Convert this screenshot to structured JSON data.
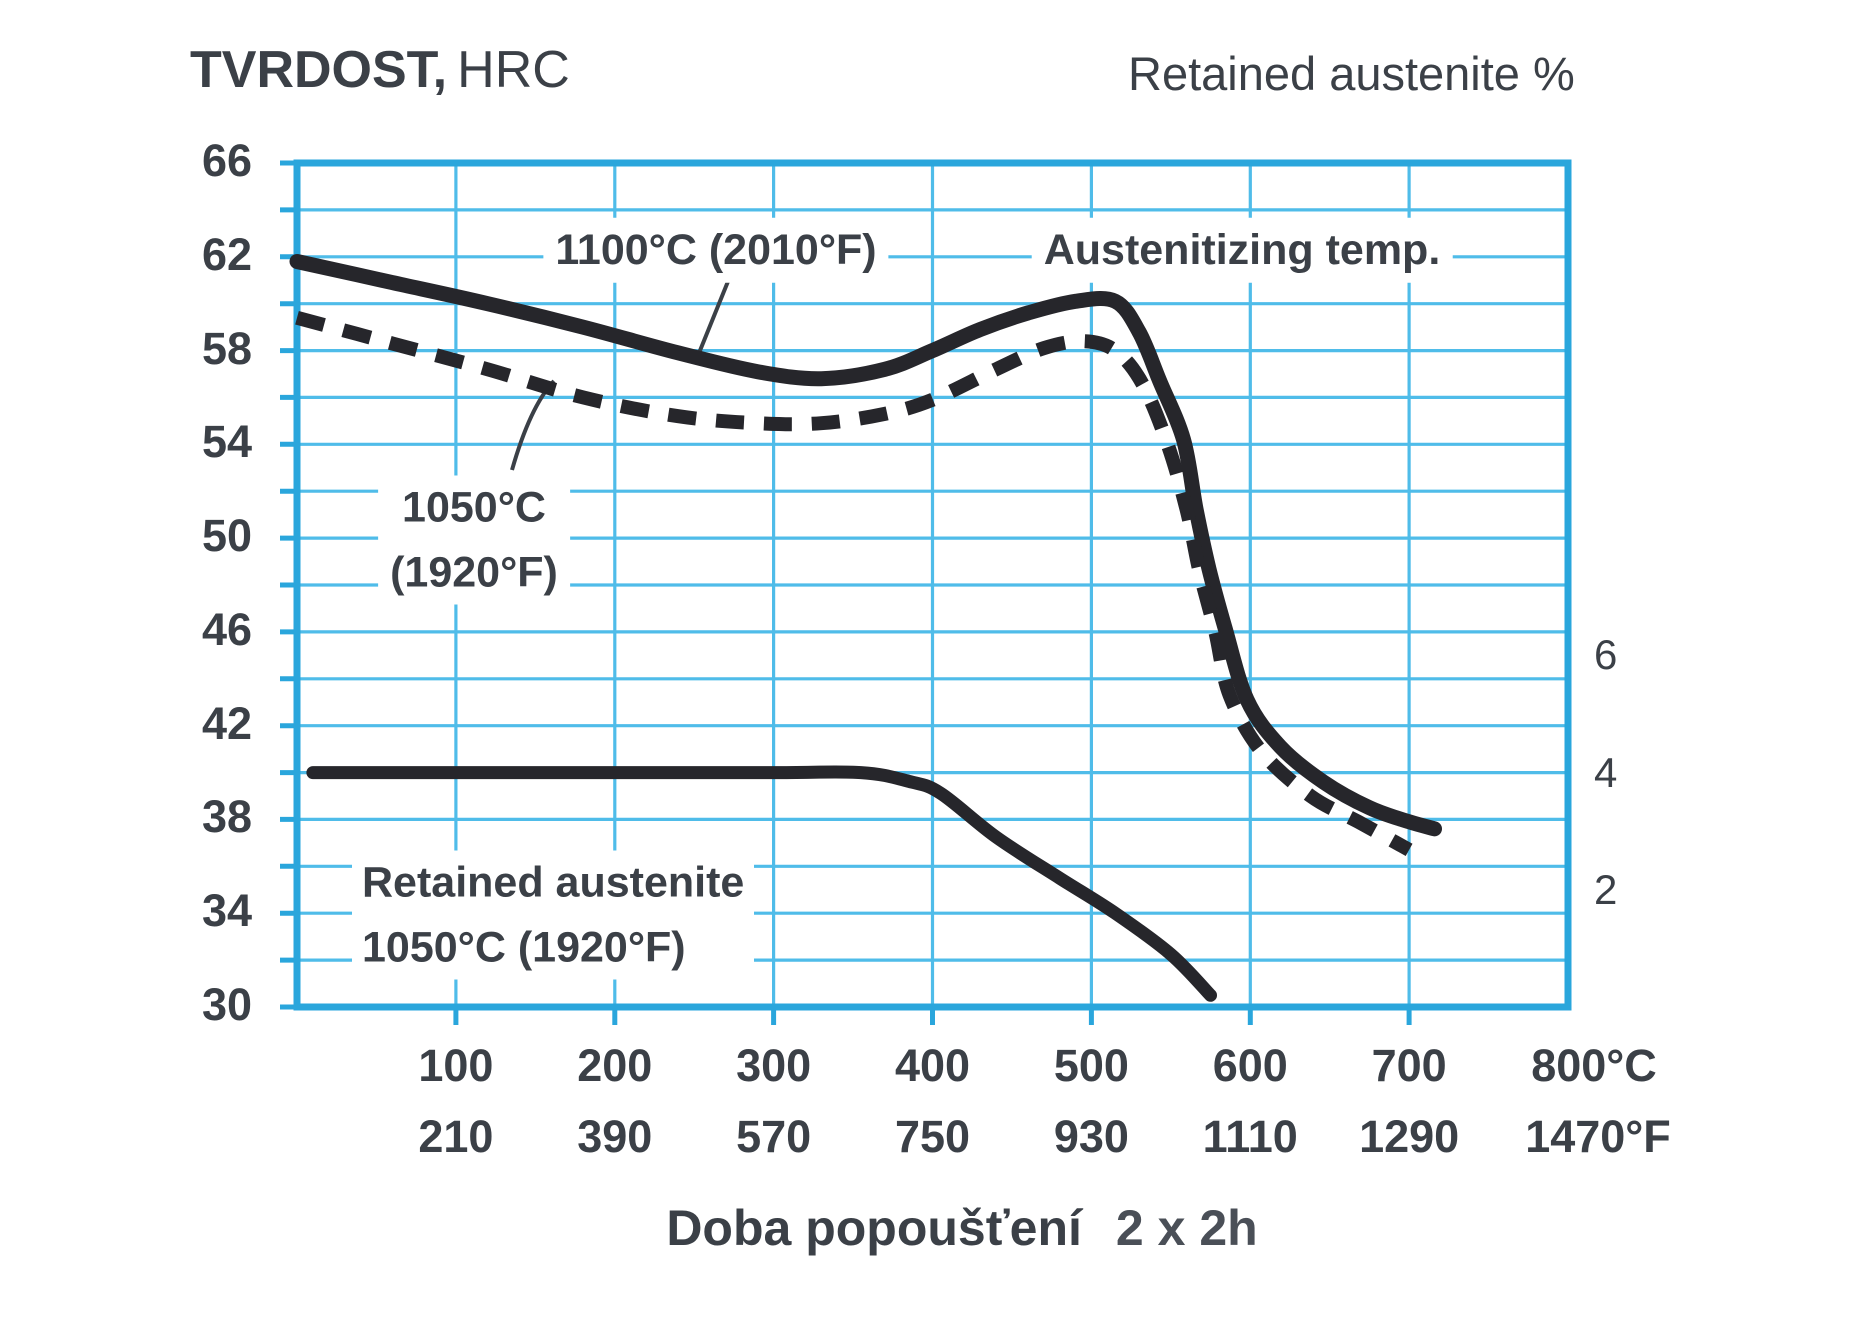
{
  "header": {
    "title_bold": "TVRDOST,",
    "title_light": "HRC",
    "right_axis_title": "Retained austenite %"
  },
  "axes": {
    "y_left": {
      "ticks": [
        "66",
        "62",
        "58",
        "54",
        "50",
        "46",
        "42",
        "38",
        "34",
        "30"
      ]
    },
    "y_right": {
      "ticks": [
        "6",
        "4",
        "2"
      ]
    },
    "x_celsius": {
      "ticks": [
        "100",
        "200",
        "300",
        "400",
        "500",
        "600",
        "700",
        "800°C"
      ]
    },
    "x_fahrenheit": {
      "ticks": [
        "210",
        "390",
        "570",
        "750",
        "930",
        "1110",
        "1290",
        "1470°F"
      ]
    }
  },
  "annotations": {
    "curve_1100_label": "1100°C (2010°F)",
    "austenitizing_label": "Austenitizing temp.",
    "curve_1050_line1": "1050°C",
    "curve_1050_line2": "(1920°F)",
    "ra_line1": "Retained austenite",
    "ra_line2": "1050°C (1920°F)"
  },
  "footer": {
    "xlabel_bold": "Doba popoušťení",
    "xlabel_suffix": "2 x 2h"
  },
  "colors": {
    "grid": "#4fbce9",
    "border": "#2aa6dc",
    "curve": "#26262b",
    "text": "#3b4047"
  },
  "chart_data": {
    "type": "line",
    "title": "TVRDOST, HRC (hardness) vs tempering temperature",
    "xlabel": "Doba popoušťení 2 x 2h",
    "x_unit": "°C",
    "x_range": [
      0,
      800
    ],
    "x_gridlines_every": 100,
    "y_left_label": "TVRDOST, HRC",
    "y_left_range": [
      30,
      66
    ],
    "y_left_gridlines_every": 2,
    "y_right_label": "Retained austenite %",
    "y_right_ticks": [
      6,
      4,
      2
    ],
    "grid": true,
    "series": [
      {
        "name": "Hardness, austenitized 1100°C (2010°F)",
        "style": "solid",
        "axis": "left",
        "width": 15,
        "points": [
          [
            0,
            61.8
          ],
          [
            60,
            60.9
          ],
          [
            120,
            60.0
          ],
          [
            180,
            59.0
          ],
          [
            240,
            57.9
          ],
          [
            290,
            57.1
          ],
          [
            330,
            56.8
          ],
          [
            370,
            57.2
          ],
          [
            400,
            58.0
          ],
          [
            430,
            58.9
          ],
          [
            460,
            59.6
          ],
          [
            490,
            60.1
          ],
          [
            515,
            60.1
          ],
          [
            530,
            58.8
          ],
          [
            543,
            56.7
          ],
          [
            558,
            54.2
          ],
          [
            566,
            51.2
          ],
          [
            574,
            48.7
          ],
          [
            584,
            46.2
          ],
          [
            598,
            43.1
          ],
          [
            619,
            41.1
          ],
          [
            646,
            39.6
          ],
          [
            675,
            38.5
          ],
          [
            700,
            37.9
          ],
          [
            716,
            37.6
          ]
        ]
      },
      {
        "name": "Hardness, austenitized 1050°C (1920°F)",
        "style": "dashed",
        "axis": "left",
        "width": 14,
        "points": [
          [
            0,
            59.4
          ],
          [
            60,
            58.3
          ],
          [
            120,
            57.2
          ],
          [
            180,
            56.0
          ],
          [
            240,
            55.2
          ],
          [
            290,
            54.9
          ],
          [
            330,
            54.9
          ],
          [
            370,
            55.3
          ],
          [
            400,
            55.9
          ],
          [
            440,
            57.2
          ],
          [
            470,
            58.1
          ],
          [
            495,
            58.4
          ],
          [
            515,
            58.0
          ],
          [
            532,
            56.6
          ],
          [
            548,
            54.0
          ],
          [
            560,
            51.2
          ],
          [
            568,
            48.6
          ],
          [
            578,
            46.0
          ],
          [
            587,
            43.3
          ],
          [
            607,
            40.9
          ],
          [
            638,
            39.0
          ],
          [
            668,
            37.9
          ],
          [
            700,
            36.7
          ]
        ]
      },
      {
        "name": "Retained austenite %, austenitized 1050°C (1920°F)",
        "style": "solid",
        "axis": "right",
        "width": 13,
        "points": [
          [
            10,
            4.0
          ],
          [
            100,
            4.0
          ],
          [
            200,
            4.0
          ],
          [
            300,
            4.0
          ],
          [
            355,
            4.0
          ],
          [
            385,
            3.85
          ],
          [
            405,
            3.65
          ],
          [
            440,
            2.9
          ],
          [
            480,
            2.2
          ],
          [
            515,
            1.6
          ],
          [
            550,
            0.9
          ],
          [
            575,
            0.2
          ]
        ]
      }
    ]
  }
}
